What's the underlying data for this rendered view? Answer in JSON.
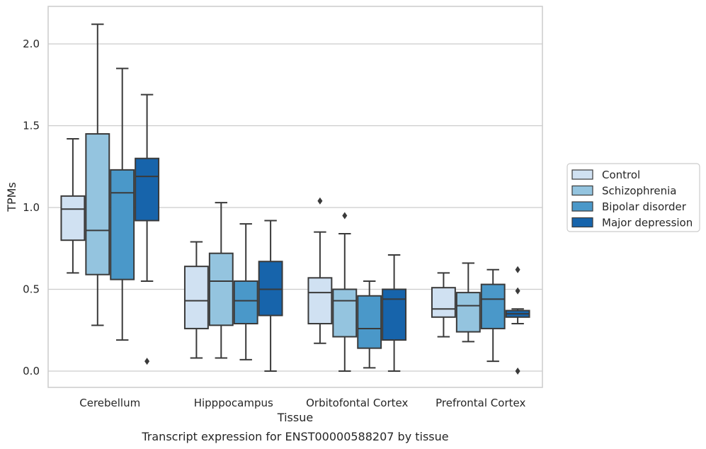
{
  "chart_data": {
    "type": "box",
    "title": "",
    "caption": "Transcript expression for ENST00000588207 by tissue",
    "xlabel": "Tissue",
    "ylabel": "TPMs",
    "ylim": [
      -0.1,
      2.25
    ],
    "yticks": [
      0.0,
      0.5,
      1.0,
      1.5,
      2.0
    ],
    "ytick_labels": [
      "0.0",
      "0.5",
      "1.0",
      "1.5",
      "2.0"
    ],
    "grid": "horizontal",
    "legend_position": "right",
    "categories": [
      "Cerebellum",
      "Hipppocampus",
      "Orbitofontal Cortex",
      "Prefrontal Cortex"
    ],
    "series": [
      {
        "name": "Control",
        "color": "#d0e1f2",
        "boxes": [
          {
            "min": 0.6,
            "q1": 0.8,
            "median": 0.99,
            "q3": 1.07,
            "max": 1.42,
            "outliers": []
          },
          {
            "min": 0.08,
            "q1": 0.26,
            "median": 0.43,
            "q3": 0.64,
            "max": 0.79,
            "outliers": []
          },
          {
            "min": 0.17,
            "q1": 0.29,
            "median": 0.48,
            "q3": 0.57,
            "max": 0.85,
            "outliers": [
              1.04
            ]
          },
          {
            "min": 0.21,
            "q1": 0.33,
            "median": 0.38,
            "q3": 0.51,
            "max": 0.6,
            "outliers": []
          }
        ]
      },
      {
        "name": "Schizophrenia",
        "color": "#94c4df",
        "boxes": [
          {
            "min": 0.28,
            "q1": 0.59,
            "median": 0.86,
            "q3": 1.45,
            "max": 2.12,
            "outliers": []
          },
          {
            "min": 0.08,
            "q1": 0.28,
            "median": 0.55,
            "q3": 0.72,
            "max": 1.03,
            "outliers": []
          },
          {
            "min": 0.0,
            "q1": 0.21,
            "median": 0.43,
            "q3": 0.5,
            "max": 0.84,
            "outliers": [
              0.95
            ]
          },
          {
            "min": 0.18,
            "q1": 0.24,
            "median": 0.4,
            "q3": 0.48,
            "max": 0.66,
            "outliers": []
          }
        ]
      },
      {
        "name": "Bipolar disorder",
        "color": "#4a98c9",
        "boxes": [
          {
            "min": 0.19,
            "q1": 0.56,
            "median": 1.09,
            "q3": 1.23,
            "max": 1.85,
            "outliers": []
          },
          {
            "min": 0.07,
            "q1": 0.29,
            "median": 0.43,
            "q3": 0.55,
            "max": 0.9,
            "outliers": []
          },
          {
            "min": 0.02,
            "q1": 0.14,
            "median": 0.26,
            "q3": 0.46,
            "max": 0.55,
            "outliers": []
          },
          {
            "min": 0.06,
            "q1": 0.26,
            "median": 0.44,
            "q3": 0.53,
            "max": 0.62,
            "outliers": []
          }
        ]
      },
      {
        "name": "Major depression",
        "color": "#1764ab",
        "boxes": [
          {
            "min": 0.55,
            "q1": 0.92,
            "median": 1.19,
            "q3": 1.3,
            "max": 1.69,
            "outliers": [
              0.06
            ]
          },
          {
            "min": 0.0,
            "q1": 0.34,
            "median": 0.5,
            "q3": 0.67,
            "max": 0.92,
            "outliers": []
          },
          {
            "min": 0.0,
            "q1": 0.19,
            "median": 0.44,
            "q3": 0.5,
            "max": 0.71,
            "outliers": []
          },
          {
            "min": 0.29,
            "q1": 0.33,
            "median": 0.35,
            "q3": 0.37,
            "max": 0.38,
            "outliers": [
              0.62,
              0.49,
              0.0
            ]
          }
        ]
      }
    ]
  }
}
